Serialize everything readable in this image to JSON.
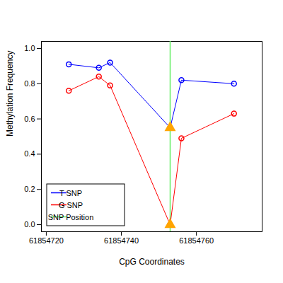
{
  "chart_data": {
    "type": "line",
    "x_label": "CpG Coordinates",
    "y_label": "Methylation Frequency",
    "x": [
      61854726,
      61854734,
      61854737,
      61854753,
      61854756,
      61854770
    ],
    "series": [
      {
        "name": "T SNP",
        "color": "#0000ff",
        "marker": "circle",
        "values": [
          0.91,
          0.89,
          0.92,
          0.55,
          0.82,
          0.8
        ]
      },
      {
        "name": "G SNP",
        "color": "#ff0000",
        "marker": "circle",
        "values": [
          0.76,
          0.84,
          0.79,
          0.0,
          0.49,
          0.63
        ]
      }
    ],
    "snp_position": {
      "name": "SNP Position",
      "color": "#66ee66",
      "x": 61854753
    },
    "xlim": [
      61854718.7,
      61854777.5
    ],
    "xticks": [
      61854720,
      61854740,
      61854760
    ],
    "ylim": [
      -0.04,
      1.04
    ],
    "yticks": [
      {
        "value": 0,
        "label": "0.0"
      },
      {
        "value": 0.2,
        "label": "0.2"
      },
      {
        "value": 0.4,
        "label": "0.4"
      },
      {
        "value": 0.6,
        "label": "0.6"
      },
      {
        "value": 0.8,
        "label": "0.8"
      },
      {
        "value": 1.0,
        "label": "1.0"
      }
    ],
    "grid": false,
    "legend": "bottomleft"
  }
}
